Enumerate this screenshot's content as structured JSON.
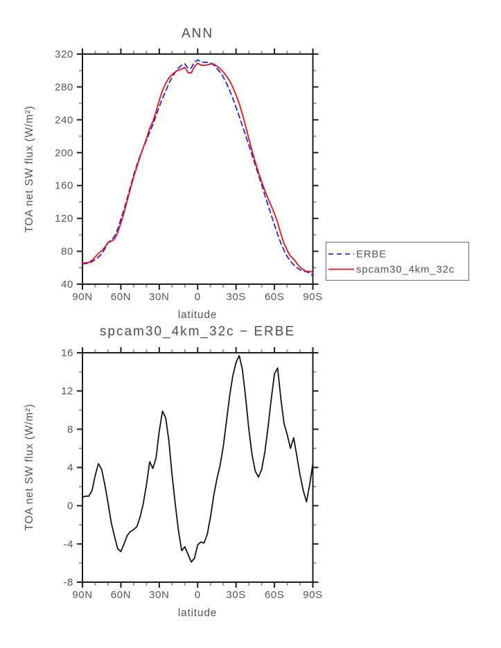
{
  "page_background": "#ffffff",
  "text_color": "#555555",
  "frame_color": "#1e1e1e",
  "minor_tick_color": "#9a9a9a",
  "chart_data": [
    {
      "type": "line",
      "title": "ANN",
      "xlabel": "latitude",
      "ylabel": "TOA net SW flux (W/m²)",
      "ylim": [
        40,
        320
      ],
      "y_major_ticks": [
        40,
        80,
        120,
        160,
        200,
        240,
        280,
        320
      ],
      "y_minor_step": 20,
      "x_major_ticks": [
        {
          "value": 90,
          "label": "90N"
        },
        {
          "value": 60,
          "label": "60N"
        },
        {
          "value": 30,
          "label": "30N"
        },
        {
          "value": 0,
          "label": "0"
        },
        {
          "value": -30,
          "label": "30S"
        },
        {
          "value": -60,
          "label": "60S"
        },
        {
          "value": -90,
          "label": "90S"
        }
      ],
      "x_minor_step": 10,
      "grid": false,
      "legend_position": "outside-right",
      "x": [
        90,
        87.5,
        85,
        82.5,
        80,
        77.5,
        75,
        72.5,
        70,
        67.5,
        65,
        62.5,
        60,
        57.5,
        55,
        52.5,
        50,
        47.5,
        45,
        42.5,
        40,
        37.5,
        35,
        32.5,
        30,
        27.5,
        25,
        22.5,
        20,
        17.5,
        15,
        12.5,
        10,
        7.5,
        5,
        2.5,
        0,
        -2.5,
        -5,
        -7.5,
        -10,
        -12.5,
        -15,
        -17.5,
        -20,
        -22.5,
        -25,
        -27.5,
        -30,
        -32.5,
        -35,
        -37.5,
        -40,
        -42.5,
        -45,
        -47.5,
        -50,
        -52.5,
        -55,
        -57.5,
        -60,
        -62.5,
        -65,
        -67.5,
        -70,
        -72.5,
        -75,
        -77.5,
        -80,
        -82.5,
        -85,
        -87.5,
        -90
      ],
      "series": [
        {
          "name": "ERBE",
          "color": "#2222dd",
          "line_style": "dashed",
          "values": [
            64.5,
            65,
            65.5,
            67.5,
            70,
            73,
            76.5,
            83,
            90.5,
            94,
            98,
            107,
            119,
            131,
            145,
            159,
            173,
            185,
            196,
            206,
            215,
            225,
            234,
            245,
            256,
            266,
            275,
            284,
            292,
            298,
            303,
            306.5,
            308,
            302.5,
            303,
            310,
            313,
            310.5,
            310,
            310,
            309,
            307,
            302.5,
            298,
            292,
            284.5,
            276,
            266,
            255,
            244,
            232.5,
            221,
            209,
            197,
            185,
            173,
            161,
            148.5,
            136,
            124,
            112,
            100.5,
            90,
            81,
            73.5,
            68,
            63.5,
            60,
            57.5,
            56,
            55,
            53.5,
            50
          ]
        },
        {
          "name": "spcam30_4km_32c",
          "color": "#ee1111",
          "line_style": "solid",
          "values": [
            65.4,
            66,
            66.5,
            69.1,
            73.2,
            77.4,
            80.3,
            85.2,
            90.8,
            92.2,
            94.8,
            102.5,
            114.2,
            127,
            141.9,
            156.3,
            170.5,
            182.8,
            194.8,
            206.2,
            217.2,
            229.6,
            237.9,
            250,
            263.8,
            275.9,
            284.2,
            290.8,
            295.2,
            298.2,
            300.4,
            301.8,
            303.7,
            297.4,
            297.1,
            304.5,
            308.9,
            306.7,
            306.1,
            307,
            307.8,
            308,
            305.3,
            302.2,
            298.2,
            293.3,
            287.5,
            279.6,
            270,
            259.7,
            246.7,
            232.3,
            217,
            202.3,
            188.6,
            176,
            164.8,
            154.1,
            144.2,
            135.2,
            125.8,
            114.9,
            101.2,
            89.6,
            80.9,
            74,
            70.6,
            65.2,
            60.7,
            57.6,
            55.4,
            55.7,
            54.4
          ]
        }
      ]
    },
    {
      "type": "line",
      "title": "spcam30_4km_32c − ERBE",
      "xlabel": "latitude",
      "ylabel": "TOA net SW flux (W/m²)",
      "ylim": [
        -8,
        16
      ],
      "y_major_ticks": [
        -8,
        -4,
        0,
        4,
        8,
        12,
        16
      ],
      "y_minor_step": 2,
      "x_major_ticks": [
        {
          "value": 90,
          "label": "90N"
        },
        {
          "value": 60,
          "label": "60N"
        },
        {
          "value": 30,
          "label": "30N"
        },
        {
          "value": 0,
          "label": "0"
        },
        {
          "value": -30,
          "label": "30S"
        },
        {
          "value": -60,
          "label": "60S"
        },
        {
          "value": -90,
          "label": "90S"
        }
      ],
      "x_minor_step": 10,
      "grid": false,
      "x": [
        90,
        87.5,
        85,
        82.5,
        80,
        77.5,
        75,
        72.5,
        70,
        67.5,
        65,
        62.5,
        60,
        57.5,
        55,
        52.5,
        50,
        47.5,
        45,
        42.5,
        40,
        37.5,
        35,
        32.5,
        30,
        27.5,
        25,
        22.5,
        20,
        17.5,
        15,
        12.5,
        10,
        7.5,
        5,
        2.5,
        0,
        -2.5,
        -5,
        -7.5,
        -10,
        -12.5,
        -15,
        -17.5,
        -20,
        -22.5,
        -25,
        -27.5,
        -30,
        -32.5,
        -35,
        -37.5,
        -40,
        -42.5,
        -45,
        -47.5,
        -50,
        -52.5,
        -55,
        -57.5,
        -60,
        -62.5,
        -65,
        -67.5,
        -70,
        -72.5,
        -75,
        -77.5,
        -80,
        -82.5,
        -85,
        -87.5,
        -90
      ],
      "series": [
        {
          "name": "spcam30_4km_32c − ERBE",
          "color": "#111111",
          "line_style": "solid",
          "values": [
            0.9,
            1,
            1,
            1.6,
            3.2,
            4.4,
            3.8,
            2.2,
            0.3,
            -1.8,
            -3.2,
            -4.5,
            -4.8,
            -4,
            -3.1,
            -2.7,
            -2.5,
            -2.2,
            -1.2,
            0.2,
            2.2,
            4.6,
            3.9,
            5,
            7.8,
            9.9,
            9.2,
            6.8,
            3.2,
            0.2,
            -2.6,
            -4.7,
            -4.3,
            -5.1,
            -5.9,
            -5.5,
            -4.1,
            -3.8,
            -3.9,
            -3,
            -1.2,
            1,
            2.8,
            4.2,
            6.2,
            8.8,
            11.5,
            13.6,
            15,
            15.7,
            14.2,
            11.3,
            8,
            5.3,
            3.6,
            3,
            3.8,
            5.6,
            8.2,
            11.2,
            13.8,
            14.4,
            11.2,
            8.6,
            7.4,
            6,
            7.1,
            5.2,
            3.2,
            1.6,
            0.4,
            2.2,
            4.4
          ]
        }
      ]
    }
  ],
  "legend": {
    "items": [
      {
        "label": "ERBE",
        "color": "#2222dd",
        "line_style": "dashed"
      },
      {
        "label": "spcam30_4km_32c",
        "color": "#ee1111",
        "line_style": "solid"
      }
    ]
  }
}
